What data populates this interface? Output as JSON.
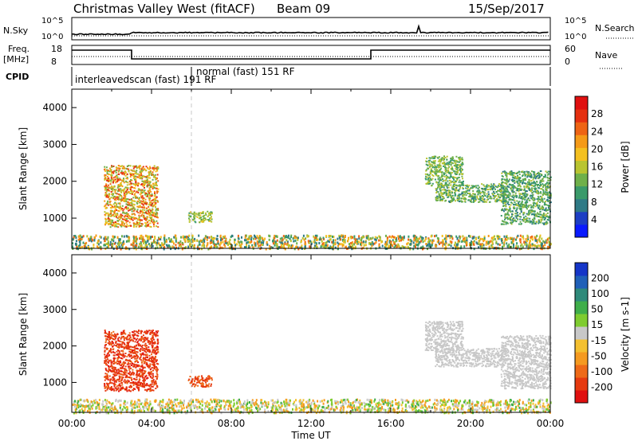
{
  "header": {
    "station": "Christmas Valley West (fitACF)",
    "beam": "Beam 09",
    "date": "15/Sep/2017"
  },
  "strip_labels": {
    "nsky": "N.Sky",
    "nsearch": "N.Search",
    "freq_line1": "Freq.",
    "freq_line2": "[MHz]",
    "nave": "Nave",
    "cpid": "CPID",
    "nsky_ticks": [
      "10^5",
      "10^0"
    ],
    "nsearch_ticks": [
      "10^5",
      "10^0"
    ],
    "freq_ticks": [
      "18",
      "8"
    ],
    "nave_ticks": [
      "60",
      "0"
    ],
    "cpid_modes": [
      "interleavedscan (fast) 191 RF",
      "normal (fast) 151 RF"
    ]
  },
  "chart_data": [
    {
      "type": "heatmap",
      "ylabel": "Slant Range [km]",
      "ylim": [
        180,
        4500
      ],
      "yticks": [
        "1000",
        "2000",
        "3000",
        "4000"
      ],
      "colorbar_label": "Power [dB]",
      "colorbar_ticks": [
        "4",
        "8",
        "12",
        "16",
        "20",
        "24",
        "28"
      ],
      "colorbar_colors": [
        "#0a1aff",
        "#1d3fc4",
        "#2f7a86",
        "#3a9a6a",
        "#6fb04a",
        "#b9c430",
        "#f4c020",
        "#f59a18",
        "#ee6414",
        "#e53010",
        "#e01010"
      ],
      "regions": [
        {
          "name": "near-range ground scatter",
          "t0": 0.0,
          "t1": 24.0,
          "r0": 190,
          "r1": 560,
          "level": [
            0.15,
            0.85
          ]
        },
        {
          "name": "morning ionospheric echo",
          "t0": 1.6,
          "t1": 4.3,
          "r0": 780,
          "r1": 2450,
          "level": [
            0.35,
            0.95
          ]
        },
        {
          "name": "06 UT patch",
          "t0": 5.8,
          "t1": 7.0,
          "r0": 900,
          "r1": 1200,
          "level": [
            0.3,
            0.6
          ]
        },
        {
          "name": "evening echo upper",
          "t0": 17.7,
          "t1": 19.6,
          "r0": 1900,
          "r1": 2700,
          "level": [
            0.25,
            0.55
          ]
        },
        {
          "name": "evening echo lower",
          "t0": 18.2,
          "t1": 21.8,
          "r0": 1450,
          "r1": 1950,
          "level": [
            0.2,
            0.55
          ]
        },
        {
          "name": "late echo",
          "t0": 21.5,
          "t1": 24.0,
          "r0": 850,
          "r1": 2300,
          "level": [
            0.2,
            0.5
          ]
        }
      ]
    },
    {
      "type": "heatmap",
      "ylabel": "Slant Range [km]",
      "ylim": [
        180,
        4500
      ],
      "yticks": [
        "1000",
        "2000",
        "3000",
        "4000"
      ],
      "colorbar_label": "Velocity [m s-1]",
      "colorbar_ticks": [
        "200",
        "100",
        "50",
        "15",
        "-15",
        "-50",
        "-100",
        "-200"
      ],
      "colorbar_colors": [
        "#1535c8",
        "#2060b8",
        "#2f8a7a",
        "#3fae4a",
        "#7fcc30",
        "#c8c8c8",
        "#f4c030",
        "#f59a20",
        "#ee6a18",
        "#e63a10",
        "#e01010"
      ],
      "regions": [
        {
          "name": "near-range ground scatter",
          "t0": 0.0,
          "t1": 24.0,
          "r0": 190,
          "r1": 560,
          "level": [
            0.3,
            0.75
          ]
        },
        {
          "name": "morning ionospheric echo",
          "t0": 1.6,
          "t1": 4.3,
          "r0": 780,
          "r1": 2450,
          "level": [
            0.82,
            0.98
          ]
        },
        {
          "name": "06 UT patch",
          "t0": 5.8,
          "t1": 7.0,
          "r0": 900,
          "r1": 1200,
          "level": [
            0.8,
            0.95
          ]
        },
        {
          "name": "evening echo upper",
          "t0": 17.7,
          "t1": 19.6,
          "r0": 1900,
          "r1": 2700,
          "level": [
            0.45,
            0.55
          ]
        },
        {
          "name": "evening echo lower",
          "t0": 18.2,
          "t1": 21.8,
          "r0": 1450,
          "r1": 1950,
          "level": [
            0.45,
            0.55
          ]
        },
        {
          "name": "late echo",
          "t0": 21.5,
          "t1": 24.0,
          "r0": 850,
          "r1": 2300,
          "level": [
            0.45,
            0.55
          ]
        }
      ]
    }
  ],
  "xaxis": {
    "label": "Time UT",
    "ticks": [
      "00:00",
      "04:00",
      "08:00",
      "12:00",
      "16:00",
      "20:00",
      "00:00"
    ],
    "range_hours": [
      0,
      24
    ]
  },
  "frequency_steps": [
    {
      "t0": 0.0,
      "t1": 3.0,
      "value": "high"
    },
    {
      "t0": 3.0,
      "t1": 15.0,
      "value": "low"
    },
    {
      "t0": 15.0,
      "t1": 24.0,
      "value": "high"
    }
  ],
  "cpid_change_hour": 6.0
}
